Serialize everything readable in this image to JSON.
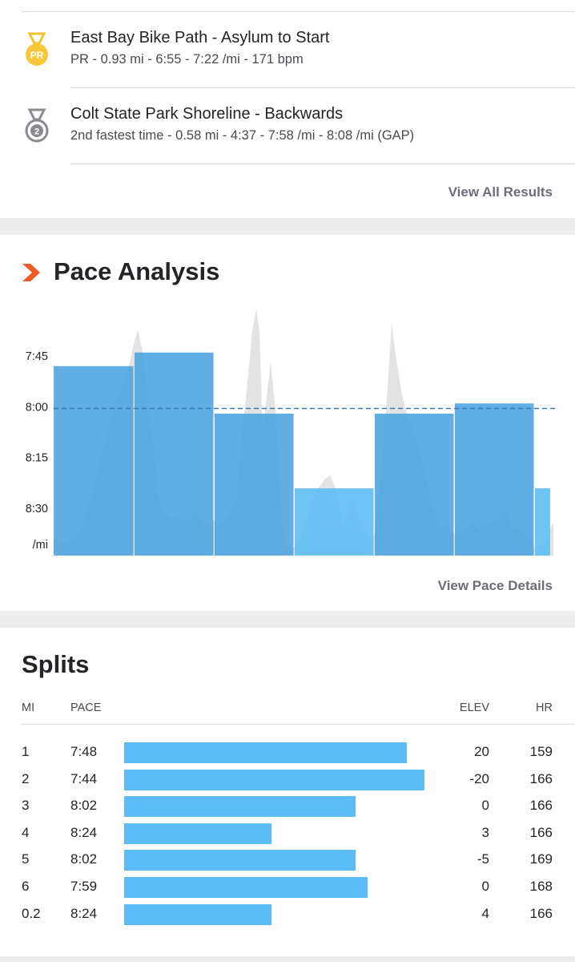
{
  "segments": {
    "items": [
      {
        "name": "East Bay Bike Path - Asylum to Start",
        "detail": "PR - 0.93 mi - 6:55 - 7:22 /mi - 171 bpm",
        "badge": "PR",
        "badge_icon": "pr-medal-icon"
      },
      {
        "name": "Colt State Park Shoreline - Backwards",
        "detail": "2nd fastest time - 0.58 mi - 4:37 - 7:58 /mi - 8:08 /mi (GAP)",
        "badge": "2",
        "badge_icon": "second-place-medal-icon"
      }
    ],
    "view_all": "View All Results"
  },
  "pace": {
    "title": "Pace Analysis",
    "view_details": "View Pace Details",
    "logo_icon": "strava-chevron-icon"
  },
  "chart_data": {
    "type": "bar",
    "y_ticks": [
      "7:45",
      "8:00",
      "8:15",
      "8:30"
    ],
    "y_unit": "/mi",
    "y_axis_reversed": true,
    "ylim_sec": [
      450,
      530
    ],
    "average_pace": "8:00",
    "average_pace_sec": 480,
    "bars": [
      {
        "pace": "7:48",
        "pace_sec": 468,
        "dist": 1
      },
      {
        "pace": "7:44",
        "pace_sec": 464,
        "dist": 1
      },
      {
        "pace": "8:02",
        "pace_sec": 482,
        "dist": 1
      },
      {
        "pace": "8:24",
        "pace_sec": 504,
        "dist": 1
      },
      {
        "pace": "8:02",
        "pace_sec": 482,
        "dist": 1
      },
      {
        "pace": "7:59",
        "pace_sec": 479,
        "dist": 1
      },
      {
        "pace": "8:24",
        "pace_sec": 504,
        "dist": 0.2
      }
    ],
    "colors": {
      "bar": "#4aa3e0",
      "bar_slow": "#5bbcf5",
      "avg_line": "#3a78b0",
      "elevation": "#e3e3e6"
    }
  },
  "splits": {
    "title": "Splits",
    "headers": {
      "mi": "MI",
      "pace": "PACE",
      "elev": "ELEV",
      "hr": "HR"
    },
    "bar_color": "#5bbcf5",
    "rows": [
      {
        "mi": "1",
        "pace": "7:48",
        "elev": "20",
        "hr": "159",
        "bar": 0.94
      },
      {
        "mi": "2",
        "pace": "7:44",
        "elev": "-20",
        "hr": "166",
        "bar": 1.0
      },
      {
        "mi": "3",
        "pace": "8:02",
        "elev": "0",
        "hr": "166",
        "bar": 0.77
      },
      {
        "mi": "4",
        "pace": "8:24",
        "elev": "3",
        "hr": "166",
        "bar": 0.49
      },
      {
        "mi": "5",
        "pace": "8:02",
        "elev": "-5",
        "hr": "169",
        "bar": 0.77
      },
      {
        "mi": "6",
        "pace": "7:59",
        "elev": "0",
        "hr": "168",
        "bar": 0.81
      },
      {
        "mi": "0.2",
        "pace": "8:24",
        "elev": "4",
        "hr": "166",
        "bar": 0.49
      }
    ]
  }
}
